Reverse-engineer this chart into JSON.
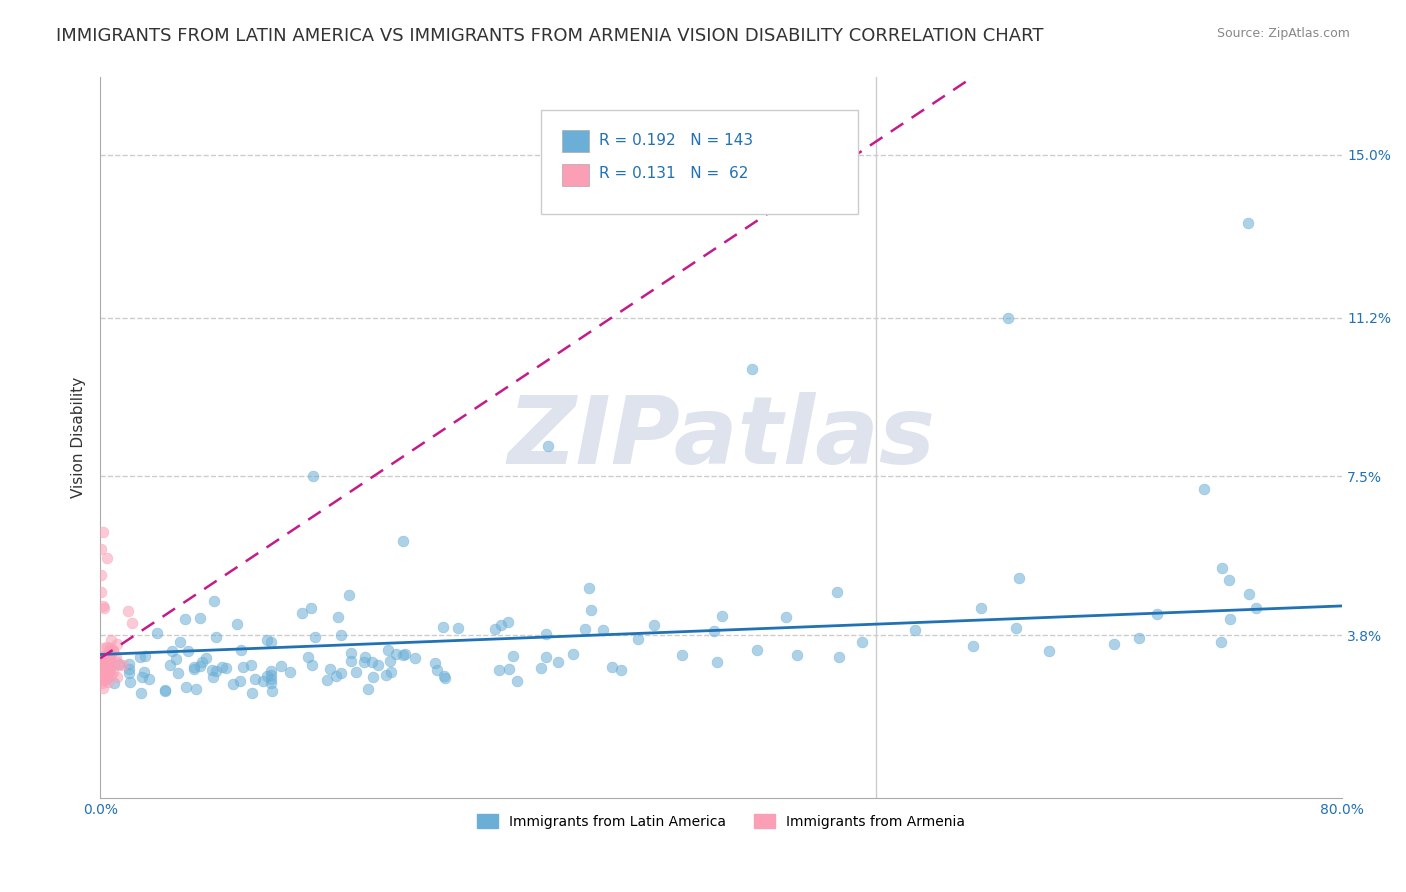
{
  "title": "IMMIGRANTS FROM LATIN AMERICA VS IMMIGRANTS FROM ARMENIA VISION DISABILITY CORRELATION CHART",
  "source": "Source: ZipAtlas.com",
  "ylabel": "Vision Disability",
  "x_min": 0.0,
  "x_max": 0.8,
  "y_min": 0.0,
  "y_max": 0.168,
  "y_ticks": [
    0.038,
    0.075,
    0.112,
    0.15
  ],
  "y_tick_labels": [
    "3.8%",
    "7.5%",
    "11.2%",
    "15.0%"
  ],
  "x_ticks": [
    0.0,
    0.1,
    0.2,
    0.3,
    0.4,
    0.5,
    0.6,
    0.7,
    0.8
  ],
  "x_tick_labels": [
    "0.0%",
    "",
    "",
    "",
    "",
    "",
    "",
    "",
    "80.0%"
  ],
  "legend1_label": "Immigrants from Latin America",
  "legend2_label": "Immigrants from Armenia",
  "R1": 0.192,
  "N1": 143,
  "R2": 0.131,
  "N2": 62,
  "color_blue": "#6baed6",
  "color_pink": "#fa9fb5",
  "color_blue_dark": "#2171b5",
  "color_pink_dark": "#c51b8a",
  "watermark": "ZIPatlas",
  "watermark_color": "#d0d8e8",
  "background_color": "#ffffff",
  "grid_color": "#cccccc",
  "scatter_alpha": 0.55,
  "scatter_size": 60,
  "title_fontsize": 13,
  "axis_label_fontsize": 11,
  "tick_fontsize": 10,
  "legend_fontsize": 10
}
